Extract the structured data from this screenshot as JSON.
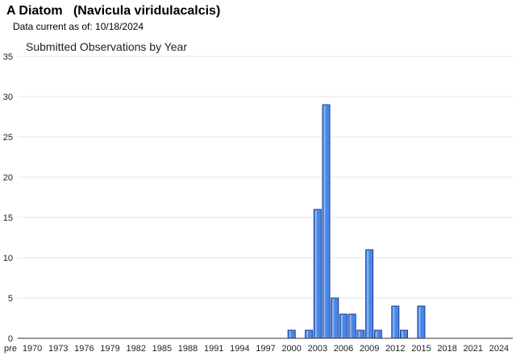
{
  "header": {
    "title": "A Diatom   (Navicula viridulacalcis)",
    "subtitle": "Data current as of: 10/18/2024"
  },
  "chart_data": {
    "type": "bar",
    "title": "Submitted Observations by Year",
    "xlabel": "",
    "ylabel": "",
    "ylim": [
      0,
      35
    ],
    "yticks": [
      0,
      5,
      10,
      15,
      20,
      25,
      30,
      35
    ],
    "grid": true,
    "bar_color": "#4a86e8",
    "bar_edge_color": "#1c3f8f",
    "categories": [
      "pre",
      "1970",
      "1971",
      "1972",
      "1973",
      "1974",
      "1975",
      "1976",
      "1977",
      "1978",
      "1979",
      "1980",
      "1981",
      "1982",
      "1983",
      "1984",
      "1985",
      "1986",
      "1987",
      "1988",
      "1989",
      "1990",
      "1991",
      "1992",
      "1993",
      "1994",
      "1995",
      "1996",
      "1997",
      "1998",
      "1999",
      "2000",
      "2001",
      "2002",
      "2003",
      "2004",
      "2005",
      "2006",
      "2007",
      "2008",
      "2009",
      "2010",
      "2011",
      "2012",
      "2013",
      "2014",
      "2015",
      "2016",
      "2017",
      "2018",
      "2019",
      "2020",
      "2021",
      "2022",
      "2023",
      "2024"
    ],
    "values": [
      0,
      0,
      0,
      0,
      0,
      0,
      0,
      0,
      0,
      0,
      0,
      0,
      0,
      0,
      0,
      0,
      0,
      0,
      0,
      0,
      0,
      0,
      0,
      0,
      0,
      0,
      0,
      0,
      0,
      0,
      0,
      1,
      0,
      1,
      16,
      29,
      5,
      3,
      3,
      1,
      11,
      1,
      0,
      4,
      1,
      0,
      4,
      0,
      0,
      0,
      0,
      0,
      0,
      0,
      0,
      0
    ],
    "xtick_labels": [
      "pre",
      "1970",
      "1973",
      "1976",
      "1979",
      "1982",
      "1985",
      "1988",
      "1991",
      "1994",
      "1997",
      "2000",
      "2003",
      "2006",
      "2009",
      "2012",
      "2015",
      "2018",
      "2021",
      "2024"
    ]
  }
}
